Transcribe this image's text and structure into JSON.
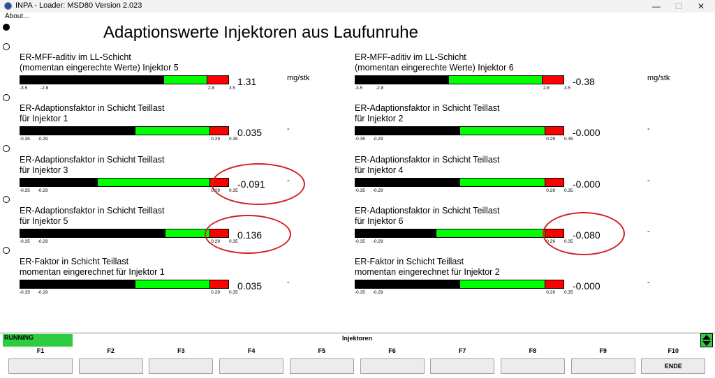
{
  "window": {
    "title": "INPA - Loader:  MSD80 Version 2.023",
    "min_glyph": "—",
    "max_glyph": "☐",
    "close_glyph": "✕"
  },
  "menu": {
    "about": "About..."
  },
  "heading": "Adaptionswerte Injektoren aus Laufunruhe",
  "gauges": [
    {
      "line1": "ER-MFF-aditiv im LL-Schicht",
      "line2": "(momentan eingerechte Werte) Injektor 5",
      "value": "1.31",
      "unit": "mg/stk",
      "ticks": [
        "-3.5",
        "-2.8",
        "2.8",
        "3.5"
      ],
      "min": -3.5,
      "low": -2.8,
      "high": 2.8,
      "max": 3.5,
      "reading": 1.31
    },
    {
      "line1": "ER-MFF-aditiv im LL-Schicht",
      "line2": "(momentan eingerechte Werte) Injektor 6",
      "value": "-0.38",
      "unit": "mg/stk",
      "ticks": [
        "-3.5",
        "-2.8",
        "2.8",
        "3.5"
      ],
      "min": -3.5,
      "low": -2.8,
      "high": 2.8,
      "max": 3.5,
      "reading": -0.38
    },
    {
      "line1": "ER-Adaptionsfaktor in Schicht Teillast",
      "line2": "für Injektor 1",
      "value": "0.035",
      "unit": "-",
      "ticks": [
        "-0.35",
        "-0.29",
        "0.29",
        "0.35"
      ],
      "min": -0.35,
      "low": -0.29,
      "high": 0.29,
      "max": 0.35,
      "reading": 0.035
    },
    {
      "line1": "ER-Adaptionsfaktor in Schicht Teillast",
      "line2": "für Injektor 2",
      "value": "-0.000",
      "unit": "-",
      "ticks": [
        "-0.35",
        "-0.29",
        "0.29",
        "0.35"
      ],
      "min": -0.35,
      "low": -0.29,
      "high": 0.29,
      "max": 0.35,
      "reading": 0.0
    },
    {
      "line1": "ER-Adaptionsfaktor in Schicht Teillast",
      "line2": "für Injektor 3",
      "value": "-0.091",
      "unit": "-",
      "ticks": [
        "-0.35",
        "-0.29",
        "0.29",
        "0.35"
      ],
      "min": -0.35,
      "low": -0.29,
      "high": 0.29,
      "max": 0.35,
      "reading": -0.091
    },
    {
      "line1": "ER-Adaptionsfaktor in Schicht Teillast",
      "line2": "für Injektor 4",
      "value": "-0.000",
      "unit": "-",
      "ticks": [
        "-0.35",
        "-0.29",
        "0.29",
        "0.35"
      ],
      "min": -0.35,
      "low": -0.29,
      "high": 0.29,
      "max": 0.35,
      "reading": 0.0
    },
    {
      "line1": "ER-Adaptionsfaktor in Schicht Teillast",
      "line2": "für Injektor 5",
      "value": "0.136",
      "unit": "",
      "ticks": [
        "-0.35",
        "-0.29",
        "0.29",
        "0.35"
      ],
      "min": -0.35,
      "low": -0.29,
      "high": 0.29,
      "max": 0.35,
      "reading": 0.136
    },
    {
      "line1": "ER-Adaptionsfaktor in Schicht Teillast",
      "line2": "für Injektor 6",
      "value": "-0.080",
      "unit": "-",
      "ticks": [
        "-0.35",
        "-0.29",
        "0.29",
        "0.35"
      ],
      "min": -0.35,
      "low": -0.29,
      "high": 0.29,
      "max": 0.35,
      "reading": -0.08
    },
    {
      "line1": "ER-Faktor in Schicht Teillast",
      "line2": "momentan eingerechnet für Injektor 1",
      "value": "0.035",
      "unit": "-",
      "ticks": [
        "-0.35",
        "-0.29",
        "0.29",
        "0.35"
      ],
      "min": -0.35,
      "low": -0.29,
      "high": 0.29,
      "max": 0.35,
      "reading": 0.035
    },
    {
      "line1": "ER-Faktor in Schicht Teillast",
      "line2": "momentan eingerechnet für Injektor 2",
      "value": "-0.000",
      "unit": "-",
      "ticks": [
        "-0.35",
        "-0.29",
        "0.29",
        "0.35"
      ],
      "min": -0.35,
      "low": -0.29,
      "high": 0.29,
      "max": 0.35,
      "reading": 0.0
    }
  ],
  "status": {
    "running": "RUNNING",
    "screen": "Injektoren"
  },
  "fkeys": [
    {
      "label": "F1",
      "button": ""
    },
    {
      "label": "F2",
      "button": ""
    },
    {
      "label": "F3",
      "button": ""
    },
    {
      "label": "F4",
      "button": ""
    },
    {
      "label": "F5",
      "button": ""
    },
    {
      "label": "F6",
      "button": ""
    },
    {
      "label": "F7",
      "button": ""
    },
    {
      "label": "F8",
      "button": ""
    },
    {
      "label": "F9",
      "button": ""
    },
    {
      "label": "F10",
      "button": "ENDE"
    }
  ],
  "colors": {
    "zone_limit": "#ff0000",
    "zone_ok": "#00ff00",
    "fill": "#000000",
    "annotation": "#d42020",
    "running": "#2ecc40"
  }
}
